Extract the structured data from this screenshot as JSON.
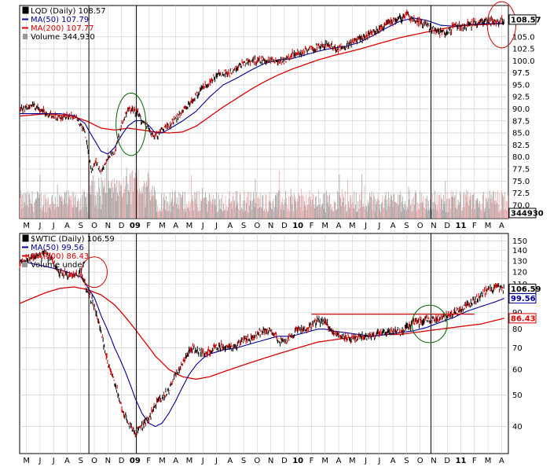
{
  "colors": {
    "price": "#000000",
    "price_down": "#cc0000",
    "ma50": "#000099",
    "ma200": "#dd0000",
    "volume": "#999999",
    "volume_down": "#e8a0a0",
    "annotation": "#cc0000",
    "annotation_green": "#006600",
    "grid": "#c8c8c8"
  },
  "x_months": [
    {
      "label": "M",
      "bold": false
    },
    {
      "label": "J",
      "bold": false
    },
    {
      "label": "J",
      "bold": false
    },
    {
      "label": "A",
      "bold": false
    },
    {
      "label": "S",
      "bold": false
    },
    {
      "label": "O",
      "bold": false
    },
    {
      "label": "N",
      "bold": false
    },
    {
      "label": "D",
      "bold": false
    },
    {
      "label": "09",
      "bold": true
    },
    {
      "label": "F",
      "bold": false
    },
    {
      "label": "M",
      "bold": false
    },
    {
      "label": "A",
      "bold": false
    },
    {
      "label": "M",
      "bold": false
    },
    {
      "label": "J",
      "bold": false
    },
    {
      "label": "J",
      "bold": false
    },
    {
      "label": "A",
      "bold": false
    },
    {
      "label": "S",
      "bold": false
    },
    {
      "label": "O",
      "bold": false
    },
    {
      "label": "N",
      "bold": false
    },
    {
      "label": "D",
      "bold": false
    },
    {
      "label": "10",
      "bold": true
    },
    {
      "label": "F",
      "bold": false
    },
    {
      "label": "M",
      "bold": false
    },
    {
      "label": "A",
      "bold": false
    },
    {
      "label": "M",
      "bold": false
    },
    {
      "label": "J",
      "bold": false
    },
    {
      "label": "J",
      "bold": false
    },
    {
      "label": "A",
      "bold": false
    },
    {
      "label": "S",
      "bold": false
    },
    {
      "label": "O",
      "bold": false
    },
    {
      "label": "N",
      "bold": false
    },
    {
      "label": "D",
      "bold": false
    },
    {
      "label": "11",
      "bold": true
    },
    {
      "label": "F",
      "bold": false
    },
    {
      "label": "M",
      "bold": false
    },
    {
      "label": "A",
      "bold": false
    }
  ],
  "chart_data": [
    {
      "type": "line",
      "symbol": "LQD",
      "legend_title": "LQD (Daily) 108.57",
      "legend_ma50": "MA(50) 107.79",
      "legend_ma200": "MA(200) 107.77",
      "legend_volume": "Volume 344,930",
      "last_price_label": "108.57",
      "last_volume_label": "344930",
      "y_scale": "linear",
      "ylim": [
        67.2,
        111.5
      ],
      "y_ticks": [
        "70.0",
        "72.5",
        "75.0",
        "77.5",
        "80.0",
        "82.5",
        "85.0",
        "87.5",
        "90.0",
        "92.5",
        "95.0",
        "97.5",
        "100.0",
        "102.5",
        "105.0",
        "108.57"
      ],
      "price_anchors": [
        [
          0,
          89.8
        ],
        [
          1,
          90.8
        ],
        [
          2,
          88.8
        ],
        [
          3,
          88.2
        ],
        [
          4,
          88.6
        ],
        [
          4.8,
          85.5
        ],
        [
          5.1,
          80
        ],
        [
          5.3,
          77
        ],
        [
          5.6,
          79.5
        ],
        [
          6,
          76.5
        ],
        [
          6.5,
          80
        ],
        [
          7,
          81
        ],
        [
          7.5,
          86.5
        ],
        [
          8,
          90
        ],
        [
          8.4,
          89.6
        ],
        [
          8.8,
          89
        ],
        [
          9,
          87.2
        ],
        [
          9.4,
          86.6
        ],
        [
          9.8,
          84.2
        ],
        [
          10.2,
          84.6
        ],
        [
          10.6,
          86.2
        ],
        [
          11,
          86.2
        ],
        [
          11.5,
          88.2
        ],
        [
          12,
          89.4
        ],
        [
          12.5,
          91.2
        ],
        [
          13,
          92.6
        ],
        [
          13.5,
          94.6
        ],
        [
          14,
          95.6
        ],
        [
          14.5,
          97
        ],
        [
          15,
          97.5
        ],
        [
          15.5,
          97.4
        ],
        [
          16,
          98.6
        ],
        [
          16.5,
          99.6
        ],
        [
          17,
          99.6
        ],
        [
          17.5,
          100.2
        ],
        [
          18,
          100.2
        ],
        [
          19,
          100
        ],
        [
          19.5,
          100
        ],
        [
          20,
          101.2
        ],
        [
          20.5,
          101.4
        ],
        [
          21,
          101.8
        ],
        [
          21.5,
          102.4
        ],
        [
          22,
          103
        ],
        [
          22.5,
          103.5
        ],
        [
          23,
          103
        ],
        [
          23.5,
          102.4
        ],
        [
          24,
          103
        ],
        [
          25,
          104.6
        ],
        [
          26,
          105.8
        ],
        [
          27,
          107.6
        ],
        [
          28,
          108.6
        ],
        [
          28.5,
          109.7
        ],
        [
          29,
          108.6
        ],
        [
          29.5,
          108
        ],
        [
          30,
          107.2
        ],
        [
          31,
          105.9
        ],
        [
          31.5,
          105.9
        ],
        [
          32,
          107
        ],
        [
          33,
          107.4
        ],
        [
          34,
          108
        ],
        [
          35,
          108.2
        ],
        [
          35.7,
          108.57
        ]
      ],
      "ma50_anchors": [
        [
          0,
          89
        ],
        [
          3,
          89
        ],
        [
          4,
          88.6
        ],
        [
          4.8,
          87
        ],
        [
          5.3,
          84.5
        ],
        [
          6,
          81.2
        ],
        [
          6.5,
          80.6
        ],
        [
          7,
          82
        ],
        [
          7.5,
          84.5
        ],
        [
          8,
          86.5
        ],
        [
          8.5,
          87.5
        ],
        [
          9,
          87.6
        ],
        [
          9.5,
          86.6
        ],
        [
          10,
          85
        ],
        [
          10.5,
          85
        ],
        [
          11,
          85.8
        ],
        [
          12,
          87.5
        ],
        [
          13,
          89.5
        ],
        [
          14,
          92.5
        ],
        [
          15,
          95
        ],
        [
          16,
          96.4
        ],
        [
          17,
          98
        ],
        [
          18,
          99.4
        ],
        [
          19,
          100.2
        ],
        [
          20,
          100.4
        ],
        [
          21,
          101.2
        ],
        [
          22,
          102
        ],
        [
          23,
          102.6
        ],
        [
          24,
          103
        ],
        [
          25,
          103.8
        ],
        [
          26,
          105.2
        ],
        [
          27,
          106.8
        ],
        [
          28,
          108.2
        ],
        [
          29,
          108.9
        ],
        [
          30,
          108.4
        ],
        [
          31,
          107.4
        ],
        [
          32,
          107.2
        ],
        [
          33,
          107.5
        ],
        [
          34,
          107.7
        ],
        [
          35.7,
          107.79
        ]
      ],
      "ma200_anchors": [
        [
          0,
          88.5
        ],
        [
          2,
          89
        ],
        [
          4,
          88.4
        ],
        [
          5,
          87.4
        ],
        [
          6,
          86
        ],
        [
          7,
          85.6
        ],
        [
          8,
          86
        ],
        [
          9,
          85.6
        ],
        [
          10,
          85.2
        ],
        [
          11,
          85
        ],
        [
          12,
          85.2
        ],
        [
          13,
          86.4
        ],
        [
          14,
          88.4
        ],
        [
          15,
          90.4
        ],
        [
          16,
          92.2
        ],
        [
          17,
          94
        ],
        [
          18,
          95.6
        ],
        [
          19,
          97
        ],
        [
          20,
          98.2
        ],
        [
          21,
          99.2
        ],
        [
          22,
          100.2
        ],
        [
          23,
          101
        ],
        [
          24,
          101.7
        ],
        [
          25,
          102.4
        ],
        [
          26,
          103.2
        ],
        [
          27,
          104
        ],
        [
          28,
          104.8
        ],
        [
          29,
          105.4
        ],
        [
          30,
          106
        ],
        [
          31,
          106.6
        ],
        [
          32,
          107.1
        ],
        [
          33,
          107.4
        ],
        [
          34,
          107.5
        ],
        [
          35.7,
          107.77
        ]
      ],
      "vertical_lines_month": [
        5.1,
        8.6,
        30.3
      ],
      "circles_month": [
        {
          "cx": 8.2,
          "cy": 86.8,
          "rx": 1.1,
          "ry": 6.5,
          "color": "annotation_green"
        },
        {
          "cx": 35.5,
          "cy": 107.5,
          "rx": 1.05,
          "ry": 4.8,
          "color": "annotation"
        }
      ]
    },
    {
      "type": "line",
      "symbol": "$WTIC",
      "legend_title": "$WTIC (Daily) 106.59",
      "legend_ma50": "MA(50) 99.56",
      "legend_ma200": "MA(200) 86.43",
      "legend_volume": "Volume undef",
      "last_price_label": "106.59",
      "ma50_label": "99.56",
      "ma200_label": "86.43",
      "y_scale": "log",
      "ylim": [
        33,
        158
      ],
      "y_ticks": [
        "40",
        "50",
        "60",
        "70",
        "80",
        "90",
        "100",
        "110",
        "120",
        "130",
        "140",
        "150"
      ],
      "price_anchors": [
        [
          0,
          128
        ],
        [
          1,
          134
        ],
        [
          2,
          136
        ],
        [
          3,
          120
        ],
        [
          4,
          116
        ],
        [
          4.5,
          120
        ],
        [
          5,
          104
        ],
        [
          5.5,
          95
        ],
        [
          6,
          78
        ],
        [
          6.5,
          62
        ],
        [
          7,
          55
        ],
        [
          7.5,
          46
        ],
        [
          8,
          41
        ],
        [
          8.5,
          38
        ],
        [
          9,
          40
        ],
        [
          9.5,
          42
        ],
        [
          10,
          47
        ],
        [
          10.5,
          49
        ],
        [
          11,
          52
        ],
        [
          11.5,
          58
        ],
        [
          12,
          62
        ],
        [
          12.5,
          70
        ],
        [
          13,
          69
        ],
        [
          13.5,
          67
        ],
        [
          14,
          68
        ],
        [
          14.5,
          71
        ],
        [
          15,
          71
        ],
        [
          15.5,
          70
        ],
        [
          16,
          71
        ],
        [
          16.5,
          74
        ],
        [
          17,
          75
        ],
        [
          17.5,
          77
        ],
        [
          18,
          79
        ],
        [
          18.5,
          80
        ],
        [
          19,
          75
        ],
        [
          19.5,
          73
        ],
        [
          20,
          76
        ],
        [
          20.5,
          80
        ],
        [
          21,
          80
        ],
        [
          21.5,
          82
        ],
        [
          22,
          85
        ],
        [
          22.5,
          84
        ],
        [
          23,
          80
        ],
        [
          23.5,
          76
        ],
        [
          24,
          76
        ],
        [
          24.5,
          74
        ],
        [
          25,
          76
        ],
        [
          25.5,
          76
        ],
        [
          26,
          76
        ],
        [
          26.5,
          78
        ],
        [
          27,
          78
        ],
        [
          27.5,
          79
        ],
        [
          28,
          78
        ],
        [
          28.5,
          81
        ],
        [
          29,
          84
        ],
        [
          29.5,
          84
        ],
        [
          30,
          86
        ],
        [
          30.5,
          86
        ],
        [
          31,
          86
        ],
        [
          31.5,
          88
        ],
        [
          32,
          90
        ],
        [
          32.5,
          92
        ],
        [
          33,
          95
        ],
        [
          33.5,
          98
        ],
        [
          34,
          103
        ],
        [
          34.5,
          105
        ],
        [
          35,
          108
        ],
        [
          35.7,
          106.59
        ]
      ],
      "ma50_anchors": [
        [
          0,
          130
        ],
        [
          3,
          122
        ],
        [
          4,
          118
        ],
        [
          4.5,
          116
        ],
        [
          5,
          108
        ],
        [
          5.5,
          100
        ],
        [
          6,
          88
        ],
        [
          7,
          70
        ],
        [
          8,
          56
        ],
        [
          8.5,
          49
        ],
        [
          9,
          44
        ],
        [
          9.5,
          41
        ],
        [
          10,
          40
        ],
        [
          10.5,
          41
        ],
        [
          11,
          44
        ],
        [
          11.5,
          48
        ],
        [
          12,
          53
        ],
        [
          12.5,
          58
        ],
        [
          13,
          62
        ],
        [
          13.5,
          65
        ],
        [
          14,
          67
        ],
        [
          15,
          69
        ],
        [
          16,
          70
        ],
        [
          17,
          72
        ],
        [
          18,
          74
        ],
        [
          19,
          76
        ],
        [
          20,
          76
        ],
        [
          21,
          78
        ],
        [
          22,
          80
        ],
        [
          22.5,
          80
        ],
        [
          23,
          79
        ],
        [
          24,
          78
        ],
        [
          25,
          77
        ],
        [
          26,
          76
        ],
        [
          27,
          77
        ],
        [
          28,
          78
        ],
        [
          29,
          79
        ],
        [
          30,
          81
        ],
        [
          31,
          84
        ],
        [
          32,
          87
        ],
        [
          33,
          91
        ],
        [
          34,
          94
        ],
        [
          35,
          97
        ],
        [
          35.7,
          99.56
        ]
      ],
      "ma200_anchors": [
        [
          0,
          96
        ],
        [
          2,
          104
        ],
        [
          3,
          107
        ],
        [
          4,
          108
        ],
        [
          5,
          106
        ],
        [
          6,
          102
        ],
        [
          7,
          95
        ],
        [
          8,
          85
        ],
        [
          9,
          75
        ],
        [
          10,
          66
        ],
        [
          11,
          60
        ],
        [
          12,
          57
        ],
        [
          13,
          56
        ],
        [
          14,
          57
        ],
        [
          15,
          59
        ],
        [
          16,
          61
        ],
        [
          17,
          63
        ],
        [
          18,
          65
        ],
        [
          19,
          67
        ],
        [
          20,
          69
        ],
        [
          21,
          71
        ],
        [
          22,
          73
        ],
        [
          23,
          74
        ],
        [
          24,
          75
        ],
        [
          25,
          76
        ],
        [
          26,
          76
        ],
        [
          27,
          77
        ],
        [
          28,
          77
        ],
        [
          29,
          78
        ],
        [
          30,
          79
        ],
        [
          31,
          80
        ],
        [
          32,
          81
        ],
        [
          33,
          82
        ],
        [
          34,
          83
        ],
        [
          35,
          85
        ],
        [
          35.7,
          86.43
        ]
      ],
      "resistance_line": {
        "x0_month": 21.5,
        "x1_month": 33.5,
        "value": 89
      },
      "vertical_lines_month": [
        5.1,
        8.6,
        30.3
      ],
      "circles_month": [
        {
          "cx": 5.5,
          "cy": 120,
          "rx": 0.95,
          "ry": 13,
          "color": "annotation"
        },
        {
          "cx": 30.2,
          "cy": 83,
          "rx": 1.3,
          "ry": 11,
          "color": "annotation_green"
        }
      ]
    }
  ]
}
